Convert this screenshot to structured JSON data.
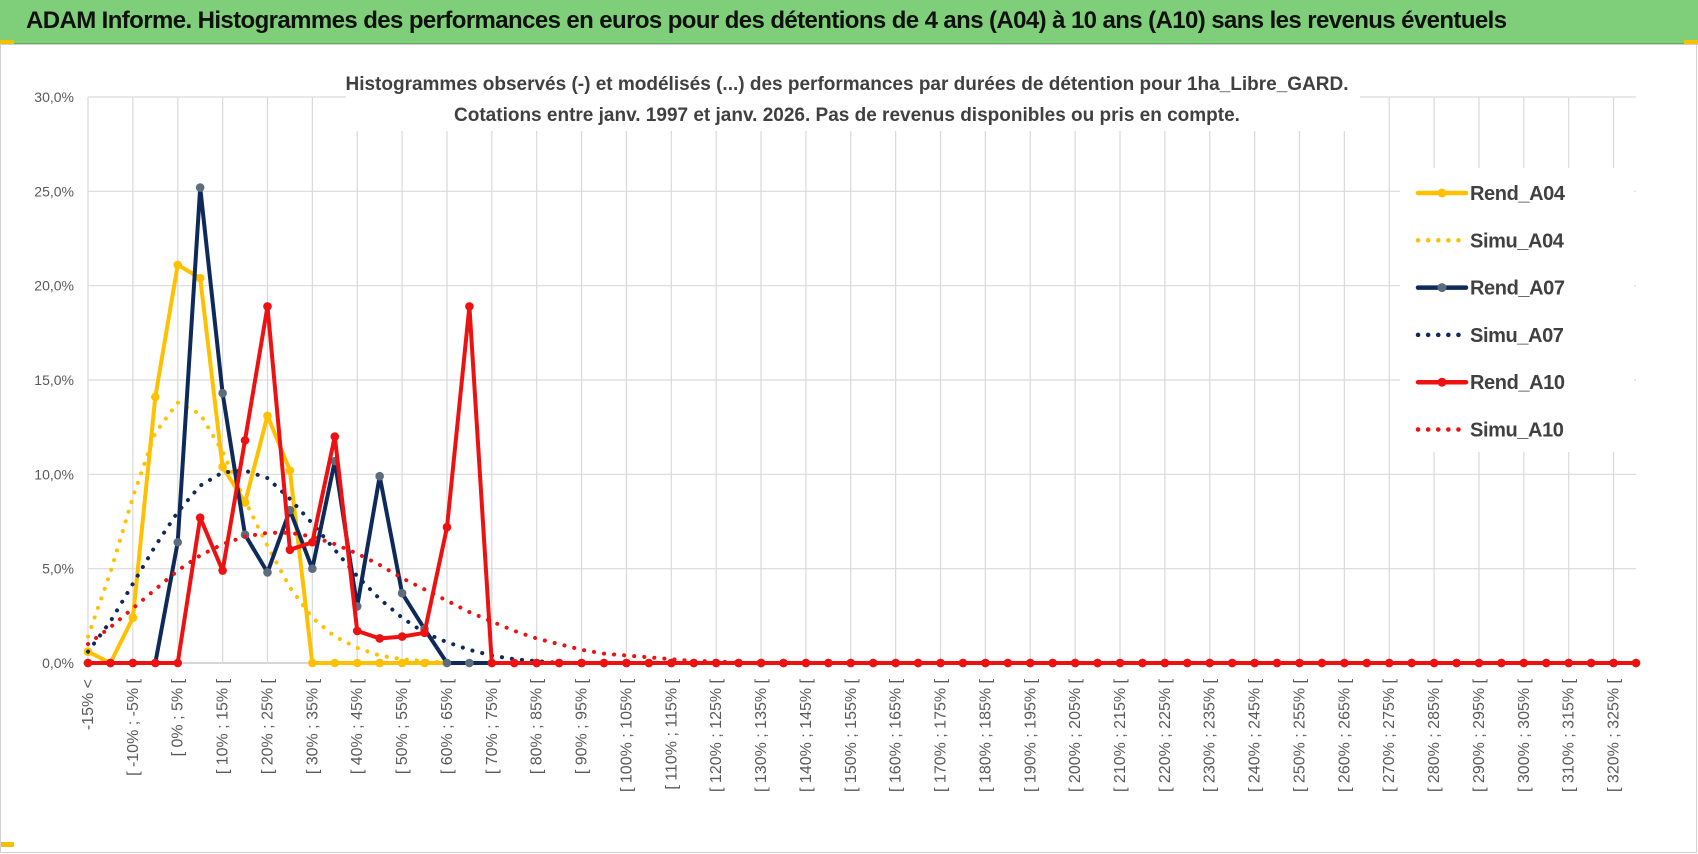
{
  "header": {
    "title": "ADAM Informe. Histogrammes des performances en euros pour des détentions de 4 ans (A04) à 10 ans (A10) sans les revenus éventuels"
  },
  "colors": {
    "header_bg": "#7fcf7a",
    "A04": "#ffc000",
    "A07": "#0e2a5a",
    "A10": "#ee1111",
    "grid": "#d9d9d9"
  },
  "chart_data": {
    "type": "line",
    "title_lines": [
      "Histogrammes observés (-) et modélisés (...) des performances par durées de détention pour 1ha_Libre_GARD.",
      "Cotations entre janv. 1997 et janv. 2026. Pas de revenus disponibles ou pris en compte."
    ],
    "ylim": [
      0,
      0.3
    ],
    "y_ticks": [
      "0,0%",
      "5,0%",
      "10,0%",
      "15,0%",
      "20,0%",
      "25,0%",
      "30,0%"
    ],
    "x_tick_labels": [
      "-15% <",
      "[ -10% ; -5% [",
      "[ 0% ; 5% [",
      "[ 10% ; 15% [",
      "[ 20% ; 25% [",
      "[ 30% ; 35% [",
      "[ 40% ; 45% [",
      "[ 50% ; 55% [",
      "[ 60% ; 65% [",
      "[ 70% ; 75% [",
      "[ 80% ; 85% [",
      "[ 90% ; 95% [",
      "[ 100% ; 105% [",
      "[ 110% ; 115% [",
      "[ 120% ; 125% [",
      "[ 130% ; 135% [",
      "[ 140% ; 145% [",
      "[ 150% ; 155% [",
      "[ 160% ; 165% [",
      "[ 170% ; 175% [",
      "[ 180% ; 185% [",
      "[ 190% ; 195% [",
      "[ 200% ; 205% [",
      "[ 210% ; 215% [",
      "[ 220% ; 225% [",
      "[ 230% ; 235% [",
      "[ 240% ; 245% [",
      "[ 250% ; 255% [",
      "[ 260% ; 265% [",
      "[ 270% ; 275% [",
      "[ 280% ; 285% [",
      "[ 290% ; 295% [",
      "[ 300% ; 305% [",
      "[ 310% ; 315% [",
      "[ 320% ; 325% ["
    ],
    "grid": true,
    "legend_position": "right",
    "series": [
      {
        "name": "Rend_A04",
        "style": "solid",
        "color": "#ffc000",
        "values": [
          0.006,
          0.0,
          0.024,
          0.141,
          0.211,
          0.204,
          0.104,
          0.085,
          0.131,
          0.102,
          0.0,
          0.0,
          0.0,
          0.0,
          0.0,
          0.0,
          0.0,
          0.0,
          0.0,
          0.0,
          0.0,
          0.0,
          0.0,
          0.0,
          0.0,
          0.0,
          0.0,
          0.0,
          0.0,
          0.0,
          0.0,
          0.0,
          0.0,
          0.0,
          0.0,
          0.0,
          0.0,
          0.0,
          0.0,
          0.0,
          0.0,
          0.0,
          0.0,
          0.0,
          0.0,
          0.0,
          0.0,
          0.0,
          0.0,
          0.0,
          0.0,
          0.0,
          0.0,
          0.0,
          0.0,
          0.0,
          0.0,
          0.0,
          0.0,
          0.0,
          0.0,
          0.0,
          0.0,
          0.0,
          0.0,
          0.0,
          0.0,
          0.0,
          0.0,
          0.0
        ]
      },
      {
        "name": "Simu_A04",
        "style": "dotted",
        "color": "#ffc000",
        "values": [
          0.014,
          0.048,
          0.088,
          0.122,
          0.138,
          0.132,
          0.112,
          0.086,
          0.062,
          0.04,
          0.024,
          0.014,
          0.008,
          0.004,
          0.002,
          0.001,
          0.0,
          0.0,
          0.0,
          0.0,
          0.0,
          0.0,
          0.0,
          0.0,
          0.0,
          0.0,
          0.0,
          0.0,
          0.0,
          0.0,
          0.0,
          0.0,
          0.0,
          0.0,
          0.0,
          0.0,
          0.0,
          0.0,
          0.0,
          0.0,
          0.0,
          0.0,
          0.0,
          0.0,
          0.0,
          0.0,
          0.0,
          0.0,
          0.0,
          0.0,
          0.0,
          0.0,
          0.0,
          0.0,
          0.0,
          0.0,
          0.0,
          0.0,
          0.0,
          0.0,
          0.0,
          0.0,
          0.0,
          0.0,
          0.0,
          0.0,
          0.0,
          0.0,
          0.0,
          0.0
        ]
      },
      {
        "name": "Rend_A07",
        "style": "solid",
        "color": "#0e2a5a",
        "values": [
          0.0,
          0.0,
          0.0,
          0.0,
          0.064,
          0.252,
          0.143,
          0.068,
          0.048,
          0.081,
          0.05,
          0.107,
          0.03,
          0.099,
          0.037,
          0.018,
          0.0,
          0.0,
          0.0,
          0.0,
          0.0,
          0.0,
          0.0,
          0.0,
          0.0,
          0.0,
          0.0,
          0.0,
          0.0,
          0.0,
          0.0,
          0.0,
          0.0,
          0.0,
          0.0,
          0.0,
          0.0,
          0.0,
          0.0,
          0.0,
          0.0,
          0.0,
          0.0,
          0.0,
          0.0,
          0.0,
          0.0,
          0.0,
          0.0,
          0.0,
          0.0,
          0.0,
          0.0,
          0.0,
          0.0,
          0.0,
          0.0,
          0.0,
          0.0,
          0.0,
          0.0,
          0.0,
          0.0,
          0.0,
          0.0,
          0.0,
          0.0,
          0.0,
          0.0,
          0.0
        ]
      },
      {
        "name": "Simu_A07",
        "style": "dotted",
        "color": "#0e2a5a",
        "values": [
          0.006,
          0.022,
          0.042,
          0.062,
          0.08,
          0.094,
          0.101,
          0.102,
          0.098,
          0.087,
          0.074,
          0.06,
          0.046,
          0.034,
          0.024,
          0.016,
          0.011,
          0.007,
          0.004,
          0.002,
          0.001,
          0.0,
          0.0,
          0.0,
          0.0,
          0.0,
          0.0,
          0.0,
          0.0,
          0.0,
          0.0,
          0.0,
          0.0,
          0.0,
          0.0,
          0.0,
          0.0,
          0.0,
          0.0,
          0.0,
          0.0,
          0.0,
          0.0,
          0.0,
          0.0,
          0.0,
          0.0,
          0.0,
          0.0,
          0.0,
          0.0,
          0.0,
          0.0,
          0.0,
          0.0,
          0.0,
          0.0,
          0.0,
          0.0,
          0.0,
          0.0,
          0.0,
          0.0,
          0.0,
          0.0,
          0.0,
          0.0,
          0.0,
          0.0,
          0.0
        ]
      },
      {
        "name": "Rend_A10",
        "style": "solid",
        "color": "#ee1111",
        "values": [
          0.0,
          0.0,
          0.0,
          0.0,
          0.0,
          0.077,
          0.049,
          0.118,
          0.189,
          0.06,
          0.064,
          0.12,
          0.017,
          0.013,
          0.014,
          0.016,
          0.072,
          0.189,
          0.0,
          0.0,
          0.0,
          0.0,
          0.0,
          0.0,
          0.0,
          0.0,
          0.0,
          0.0,
          0.0,
          0.0,
          0.0,
          0.0,
          0.0,
          0.0,
          0.0,
          0.0,
          0.0,
          0.0,
          0.0,
          0.0,
          0.0,
          0.0,
          0.0,
          0.0,
          0.0,
          0.0,
          0.0,
          0.0,
          0.0,
          0.0,
          0.0,
          0.0,
          0.0,
          0.0,
          0.0,
          0.0,
          0.0,
          0.0,
          0.0,
          0.0,
          0.0,
          0.0,
          0.0,
          0.0,
          0.0,
          0.0,
          0.0,
          0.0,
          0.0,
          0.0
        ]
      },
      {
        "name": "Simu_A10",
        "style": "dotted",
        "color": "#ee1111",
        "values": [
          0.01,
          0.019,
          0.029,
          0.039,
          0.049,
          0.057,
          0.063,
          0.067,
          0.069,
          0.069,
          0.067,
          0.063,
          0.058,
          0.052,
          0.045,
          0.039,
          0.033,
          0.027,
          0.022,
          0.017,
          0.013,
          0.01,
          0.007,
          0.005,
          0.004,
          0.003,
          0.002,
          0.001,
          0.001,
          0.0,
          0.0,
          0.0,
          0.0,
          0.0,
          0.0,
          0.0,
          0.0,
          0.0,
          0.0,
          0.0,
          0.0,
          0.0,
          0.0,
          0.0,
          0.0,
          0.0,
          0.0,
          0.0,
          0.0,
          0.0,
          0.0,
          0.0,
          0.0,
          0.0,
          0.0,
          0.0,
          0.0,
          0.0,
          0.0,
          0.0,
          0.0,
          0.0,
          0.0,
          0.0,
          0.0,
          0.0,
          0.0,
          0.0,
          0.0,
          0.0
        ]
      }
    ]
  }
}
